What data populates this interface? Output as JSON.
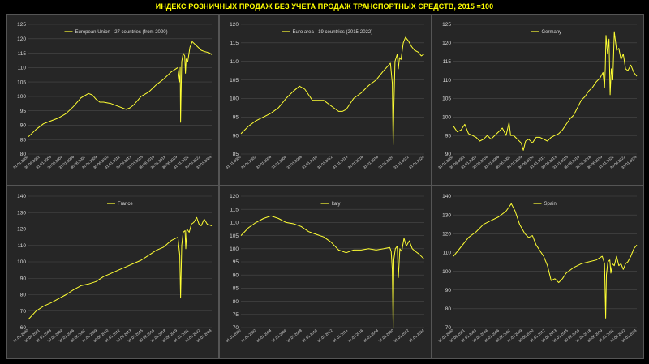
{
  "title": "ИНДЕКС РОЗНИЧНЫХ ПРОДАЖ БЕЗ УЧЕТА ПРОДАЖ ТРАНСПОРТНЫХ СРЕДСТВ, 2015 =100",
  "colors": {
    "series": "#ffff33",
    "title": "#ffff00",
    "panel_bg": "#262626",
    "page_bg": "#000000"
  },
  "chart_data": [
    {
      "type": "line",
      "series": [
        {
          "name": "European Union - 27 countries (from 2020)"
        }
      ],
      "yticks": [
        80,
        85,
        90,
        95,
        100,
        105,
        110,
        115,
        120,
        125
      ],
      "ylim": [
        80,
        125
      ],
      "xlim": [
        2000.0,
        2024.4
      ],
      "xticks": [
        "31.01.2000",
        "30.06.2001",
        "31.01.2003",
        "30.06.2004",
        "31.01.2006",
        "30.06.2007",
        "31.01.2009",
        "30.06.2010",
        "31.01.2012",
        "30.06.2013",
        "31.01.2015",
        "30.06.2016",
        "31.01.2018",
        "30.06.2019",
        "31.01.2021",
        "30.06.2022",
        "31.01.2024"
      ],
      "points": [
        [
          2000.0,
          86
        ],
        [
          2001,
          88.5
        ],
        [
          2002,
          90.5
        ],
        [
          2003,
          91.5
        ],
        [
          2004,
          92.5
        ],
        [
          2005,
          94
        ],
        [
          2006,
          96.5
        ],
        [
          2007,
          99.5
        ],
        [
          2008,
          101
        ],
        [
          2008.5,
          100.5
        ],
        [
          2009,
          99
        ],
        [
          2009.5,
          98
        ],
        [
          2010,
          98
        ],
        [
          2011,
          97.5
        ],
        [
          2012,
          96.5
        ],
        [
          2013,
          95.5
        ],
        [
          2013.5,
          96
        ],
        [
          2014,
          97
        ],
        [
          2015,
          100
        ],
        [
          2016,
          101.5
        ],
        [
          2017,
          104
        ],
        [
          2018,
          106
        ],
        [
          2019,
          108.5
        ],
        [
          2019.9,
          110
        ],
        [
          2020.15,
          105
        ],
        [
          2020.2,
          110
        ],
        [
          2020.25,
          91
        ],
        [
          2020.3,
          98
        ],
        [
          2020.4,
          112
        ],
        [
          2020.6,
          115
        ],
        [
          2020.8,
          114
        ],
        [
          2020.9,
          108
        ],
        [
          2021.0,
          113
        ],
        [
          2021.2,
          112
        ],
        [
          2021.5,
          117
        ],
        [
          2021.8,
          119
        ],
        [
          2022.2,
          118
        ],
        [
          2022.6,
          117
        ],
        [
          2023.0,
          116
        ],
        [
          2023.5,
          115.5
        ],
        [
          2024.0,
          115.2
        ],
        [
          2024.4,
          114.5
        ]
      ]
    },
    {
      "type": "line",
      "series": [
        {
          "name": "Euro area - 19 countries  (2015-2022)"
        }
      ],
      "yticks": [
        85,
        90,
        95,
        100,
        105,
        110,
        115,
        120
      ],
      "ylim": [
        85,
        120
      ],
      "xlim": [
        2000.0,
        2024.4
      ],
      "xticks": [
        "31.01.2000",
        "31.01.2002",
        "31.01.2004",
        "31.01.2006",
        "31.01.2008",
        "31.01.2010",
        "31.01.2012",
        "31.01.2014",
        "31.01.2016",
        "31.01.2018",
        "31.01.2020",
        "31.01.2022",
        "31.01.2024"
      ],
      "points": [
        [
          2000.0,
          90.5
        ],
        [
          2001,
          92.5
        ],
        [
          2002,
          94
        ],
        [
          2003,
          95
        ],
        [
          2004,
          96
        ],
        [
          2005,
          97.5
        ],
        [
          2006,
          100
        ],
        [
          2007,
          102
        ],
        [
          2007.8,
          103.3
        ],
        [
          2008.5,
          102.5
        ],
        [
          2009,
          101
        ],
        [
          2009.5,
          99.5
        ],
        [
          2010,
          99.5
        ],
        [
          2011,
          99.5
        ],
        [
          2012,
          98
        ],
        [
          2013,
          96.5
        ],
        [
          2013.5,
          96.5
        ],
        [
          2014,
          97
        ],
        [
          2015,
          100
        ],
        [
          2016,
          101.5
        ],
        [
          2017,
          103.5
        ],
        [
          2018,
          105
        ],
        [
          2019,
          107.5
        ],
        [
          2019.9,
          109.5
        ],
        [
          2020.15,
          104
        ],
        [
          2020.25,
          87.5
        ],
        [
          2020.35,
          98
        ],
        [
          2020.5,
          110
        ],
        [
          2020.8,
          112
        ],
        [
          2020.95,
          108
        ],
        [
          2021.1,
          111
        ],
        [
          2021.3,
          110.5
        ],
        [
          2021.6,
          115
        ],
        [
          2021.9,
          116.5
        ],
        [
          2022.3,
          115.5
        ],
        [
          2022.7,
          114
        ],
        [
          2023.1,
          113
        ],
        [
          2023.6,
          112.5
        ],
        [
          2024.0,
          111.5
        ],
        [
          2024.4,
          112
        ]
      ]
    },
    {
      "type": "line",
      "series": [
        {
          "name": "Germany"
        }
      ],
      "yticks": [
        90,
        95,
        100,
        105,
        110,
        115,
        120,
        125
      ],
      "ylim": [
        90,
        125
      ],
      "xlim": [
        2000.0,
        2024.4
      ],
      "xticks": [
        "31.01.2000",
        "30.06.2001",
        "31.01.2003",
        "30.06.2004",
        "31.01.2006",
        "30.06.2007",
        "31.01.2009",
        "30.06.2010",
        "31.01.2012",
        "30.06.2013",
        "31.01.2015",
        "30.06.2016",
        "31.01.2018",
        "30.06.2019",
        "31.01.2021",
        "30.06.2022",
        "31.01.2024"
      ],
      "points": [
        [
          2000.0,
          97.5
        ],
        [
          2000.5,
          96
        ],
        [
          2001,
          96.5
        ],
        [
          2001.5,
          98
        ],
        [
          2002,
          95.5
        ],
        [
          2002.5,
          95
        ],
        [
          2003,
          94.5
        ],
        [
          2003.5,
          93.5
        ],
        [
          2004,
          94
        ],
        [
          2004.5,
          95
        ],
        [
          2005,
          94
        ],
        [
          2005.5,
          95
        ],
        [
          2006,
          96
        ],
        [
          2006.5,
          97
        ],
        [
          2007,
          95
        ],
        [
          2007.4,
          98.5
        ],
        [
          2007.6,
          95
        ],
        [
          2008,
          95
        ],
        [
          2008.5,
          94
        ],
        [
          2009,
          93
        ],
        [
          2009.3,
          91
        ],
        [
          2009.6,
          93.5
        ],
        [
          2010,
          94
        ],
        [
          2010.5,
          93
        ],
        [
          2011,
          94.5
        ],
        [
          2011.5,
          94.5
        ],
        [
          2012,
          94
        ],
        [
          2012.5,
          93.5
        ],
        [
          2013,
          94.5
        ],
        [
          2013.5,
          95
        ],
        [
          2014,
          95.5
        ],
        [
          2014.5,
          96.5
        ],
        [
          2015,
          98
        ],
        [
          2015.5,
          99.5
        ],
        [
          2016,
          100.5
        ],
        [
          2016.5,
          102.5
        ],
        [
          2017,
          104.5
        ],
        [
          2017.5,
          105.5
        ],
        [
          2018,
          107
        ],
        [
          2018.5,
          108
        ],
        [
          2019,
          109.5
        ],
        [
          2019.5,
          110.5
        ],
        [
          2019.9,
          112
        ],
        [
          2020.1,
          108
        ],
        [
          2020.2,
          113
        ],
        [
          2020.3,
          122
        ],
        [
          2020.5,
          117
        ],
        [
          2020.7,
          121
        ],
        [
          2020.85,
          106
        ],
        [
          2021.0,
          113
        ],
        [
          2021.2,
          110
        ],
        [
          2021.4,
          123
        ],
        [
          2021.7,
          118
        ],
        [
          2022.0,
          118.5
        ],
        [
          2022.3,
          115.5
        ],
        [
          2022.6,
          117
        ],
        [
          2022.9,
          113
        ],
        [
          2023.2,
          112.5
        ],
        [
          2023.6,
          114
        ],
        [
          2024.0,
          112
        ],
        [
          2024.4,
          111
        ]
      ]
    },
    {
      "type": "line",
      "series": [
        {
          "name": "France"
        }
      ],
      "yticks": [
        60,
        70,
        80,
        90,
        100,
        110,
        120,
        130,
        140
      ],
      "ylim": [
        60,
        140
      ],
      "xlim": [
        2000.0,
        2024.4
      ],
      "xticks": [
        "31.01.2000",
        "30.06.2001",
        "31.01.2003",
        "30.06.2004",
        "31.01.2006",
        "30.06.2007",
        "31.01.2009",
        "30.06.2010",
        "31.01.2012",
        "30.06.2013",
        "31.01.2015",
        "30.06.2016",
        "31.01.2018",
        "30.06.2019",
        "31.01.2021",
        "30.06.2022",
        "31.01.2024"
      ],
      "points": [
        [
          2000.0,
          65
        ],
        [
          2001,
          70
        ],
        [
          2002,
          73
        ],
        [
          2003,
          75
        ],
        [
          2004,
          77.5
        ],
        [
          2005,
          80
        ],
        [
          2006,
          83
        ],
        [
          2007,
          85.5
        ],
        [
          2008,
          86.5
        ],
        [
          2009,
          88
        ],
        [
          2010,
          91
        ],
        [
          2011,
          93
        ],
        [
          2012,
          95
        ],
        [
          2013,
          97
        ],
        [
          2014,
          99
        ],
        [
          2015,
          101
        ],
        [
          2016,
          104
        ],
        [
          2017,
          107
        ],
        [
          2018,
          109
        ],
        [
          2019,
          113
        ],
        [
          2019.9,
          115
        ],
        [
          2020.15,
          104
        ],
        [
          2020.25,
          78
        ],
        [
          2020.4,
          110
        ],
        [
          2020.6,
          118
        ],
        [
          2020.85,
          119
        ],
        [
          2020.95,
          108
        ],
        [
          2021.1,
          120
        ],
        [
          2021.4,
          118
        ],
        [
          2021.7,
          123
        ],
        [
          2022.0,
          124
        ],
        [
          2022.4,
          127
        ],
        [
          2022.7,
          123
        ],
        [
          2023.0,
          122
        ],
        [
          2023.4,
          126
        ],
        [
          2023.8,
          123
        ],
        [
          2024.4,
          122
        ]
      ]
    },
    {
      "type": "line",
      "series": [
        {
          "name": "Italy"
        }
      ],
      "yticks": [
        70,
        75,
        80,
        85,
        90,
        95,
        100,
        105,
        110,
        115,
        120
      ],
      "ylim": [
        70,
        120
      ],
      "xlim": [
        2000.0,
        2024.4
      ],
      "xticks": [
        "31.01.2000",
        "31.01.2002",
        "31.01.2004",
        "31.01.2006",
        "31.01.2008",
        "31.01.2010",
        "31.01.2012",
        "31.01.2014",
        "31.01.2016",
        "31.01.2018",
        "31.01.2020",
        "31.01.2022",
        "31.01.2024"
      ],
      "points": [
        [
          2000.0,
          105
        ],
        [
          2001,
          108
        ],
        [
          2002,
          110
        ],
        [
          2003,
          111.5
        ],
        [
          2004,
          112.5
        ],
        [
          2005,
          111.5
        ],
        [
          2006,
          110
        ],
        [
          2007,
          109.5
        ],
        [
          2008,
          108.5
        ],
        [
          2009,
          106.5
        ],
        [
          2010,
          105.5
        ],
        [
          2011,
          104.5
        ],
        [
          2012,
          102.5
        ],
        [
          2013,
          99.5
        ],
        [
          2014,
          98.5
        ],
        [
          2015,
          99.5
        ],
        [
          2016,
          99.5
        ],
        [
          2017,
          100
        ],
        [
          2018,
          99.5
        ],
        [
          2019,
          100
        ],
        [
          2019.8,
          100.5
        ],
        [
          2020.0,
          99
        ],
        [
          2020.15,
          92
        ],
        [
          2020.25,
          70
        ],
        [
          2020.35,
          96
        ],
        [
          2020.55,
          100
        ],
        [
          2020.8,
          101
        ],
        [
          2020.95,
          89
        ],
        [
          2021.15,
          100
        ],
        [
          2021.4,
          99
        ],
        [
          2021.7,
          104
        ],
        [
          2022.0,
          101
        ],
        [
          2022.4,
          103
        ],
        [
          2022.8,
          100
        ],
        [
          2023.2,
          99
        ],
        [
          2023.7,
          98
        ],
        [
          2024.4,
          96
        ]
      ]
    },
    {
      "type": "line",
      "series": [
        {
          "name": "Spain"
        }
      ],
      "yticks": [
        70,
        80,
        90,
        100,
        110,
        120,
        130,
        140
      ],
      "ylim": [
        70,
        140
      ],
      "xlim": [
        2000.0,
        2024.4
      ],
      "xticks": [
        "31.01.2000",
        "30.06.2001",
        "31.01.2003",
        "30.06.2004",
        "31.01.2006",
        "30.06.2007",
        "31.01.2009",
        "30.06.2010",
        "31.01.2012",
        "30.06.2013",
        "31.01.2015",
        "30.06.2016",
        "31.01.2018",
        "30.06.2019",
        "31.01.2021",
        "30.06.2022",
        "31.01.2024"
      ],
      "points": [
        [
          2000.0,
          108
        ],
        [
          2001,
          113
        ],
        [
          2002,
          118
        ],
        [
          2003,
          121
        ],
        [
          2004,
          125
        ],
        [
          2005,
          127
        ],
        [
          2006,
          129
        ],
        [
          2007,
          132
        ],
        [
          2007.7,
          136
        ],
        [
          2008.2,
          132
        ],
        [
          2008.8,
          125
        ],
        [
          2009.5,
          120
        ],
        [
          2010,
          118
        ],
        [
          2010.5,
          119
        ],
        [
          2011,
          114
        ],
        [
          2012,
          108
        ],
        [
          2012.5,
          103
        ],
        [
          2013,
          95
        ],
        [
          2013.5,
          96
        ],
        [
          2014,
          94
        ],
        [
          2014.5,
          96
        ],
        [
          2015,
          99
        ],
        [
          2016,
          102
        ],
        [
          2017,
          104
        ],
        [
          2018,
          105
        ],
        [
          2019,
          106
        ],
        [
          2019.8,
          108
        ],
        [
          2020.1,
          104
        ],
        [
          2020.25,
          75
        ],
        [
          2020.35,
          98
        ],
        [
          2020.55,
          105
        ],
        [
          2020.8,
          106
        ],
        [
          2020.95,
          99
        ],
        [
          2021.15,
          104
        ],
        [
          2021.4,
          103
        ],
        [
          2021.7,
          108
        ],
        [
          2022.0,
          103
        ],
        [
          2022.3,
          104
        ],
        [
          2022.6,
          101
        ],
        [
          2022.9,
          104
        ],
        [
          2023.2,
          105
        ],
        [
          2023.6,
          108
        ],
        [
          2024.0,
          112
        ],
        [
          2024.4,
          114
        ]
      ]
    }
  ]
}
